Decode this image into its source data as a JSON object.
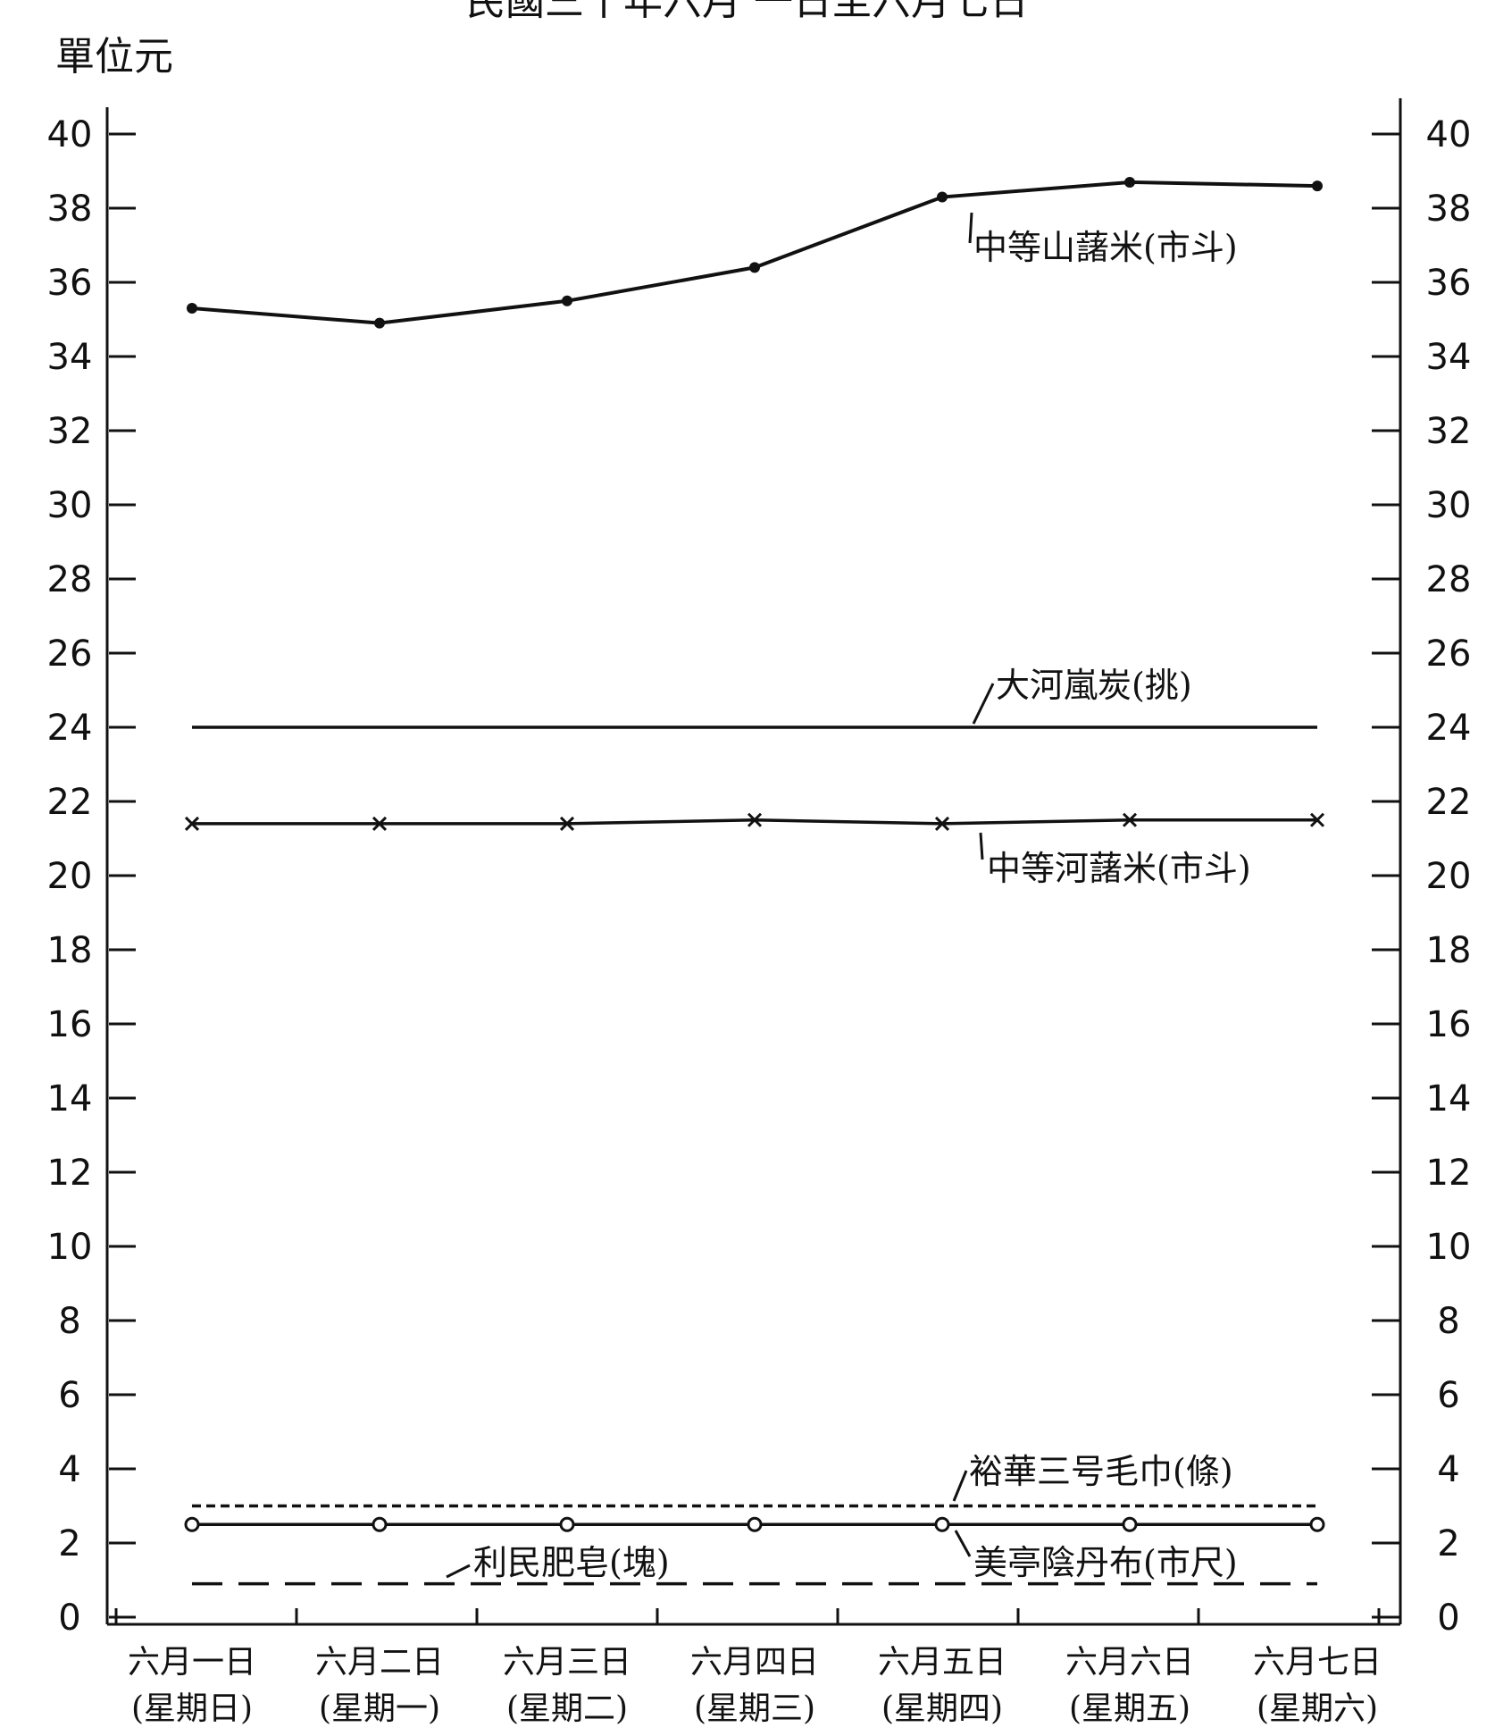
{
  "chart_data": {
    "type": "line",
    "title": "民國三十年六月 一日至六月七日",
    "unit_label": "單位元",
    "ylim": [
      0,
      40
    ],
    "yticks": [
      0,
      2,
      4,
      6,
      8,
      10,
      12,
      14,
      16,
      18,
      20,
      22,
      24,
      26,
      28,
      30,
      32,
      34,
      36,
      38,
      40
    ],
    "ytick_labels": [
      "0",
      "2",
      "4",
      "6",
      "8",
      "10",
      "12",
      "14",
      "16",
      "18",
      "20",
      "22",
      "24",
      "26",
      "28",
      "30",
      "32",
      "34",
      "36",
      "38",
      "40"
    ],
    "categories": [
      {
        "date": "六月一日",
        "weekday": "(星期日)"
      },
      {
        "date": "六月二日",
        "weekday": "(星期一)"
      },
      {
        "date": "六月三日",
        "weekday": "(星期二)"
      },
      {
        "date": "六月四日",
        "weekday": "(星期三)"
      },
      {
        "date": "六月五日",
        "weekday": "(星期四)"
      },
      {
        "date": "六月六日",
        "weekday": "(星期五)"
      },
      {
        "date": "六月七日",
        "weekday": "(星期六)"
      }
    ],
    "series": [
      {
        "name": "中等山藷米(市斗)",
        "style": "solid",
        "marker": "dot",
        "values": [
          35.3,
          34.9,
          35.5,
          36.4,
          38.3,
          38.7,
          38.6
        ]
      },
      {
        "name": "大河嵐炭(挑)",
        "style": "solid",
        "marker": "none",
        "values": [
          24.0,
          24.0,
          24.0,
          24.0,
          24.0,
          24.0,
          24.0
        ]
      },
      {
        "name": "中等河藷米(市斗)",
        "style": "solid",
        "marker": "cross",
        "values": [
          21.4,
          21.4,
          21.4,
          21.5,
          21.4,
          21.5,
          21.5
        ]
      },
      {
        "name": "裕華三号毛巾(條)",
        "style": "dashed",
        "marker": "none",
        "values": [
          3.0,
          3.0,
          3.0,
          3.0,
          3.0,
          3.0,
          3.0
        ]
      },
      {
        "name": "美亭陰丹布(市尺)",
        "style": "solid",
        "marker": "circle",
        "values": [
          2.5,
          2.5,
          2.5,
          2.5,
          2.5,
          2.5,
          2.5
        ]
      },
      {
        "name": "利民肥皂(塊)",
        "style": "dashed",
        "marker": "none",
        "values": [
          0.9,
          0.9,
          0.9,
          0.9,
          0.9,
          0.9,
          0.9
        ]
      }
    ]
  }
}
